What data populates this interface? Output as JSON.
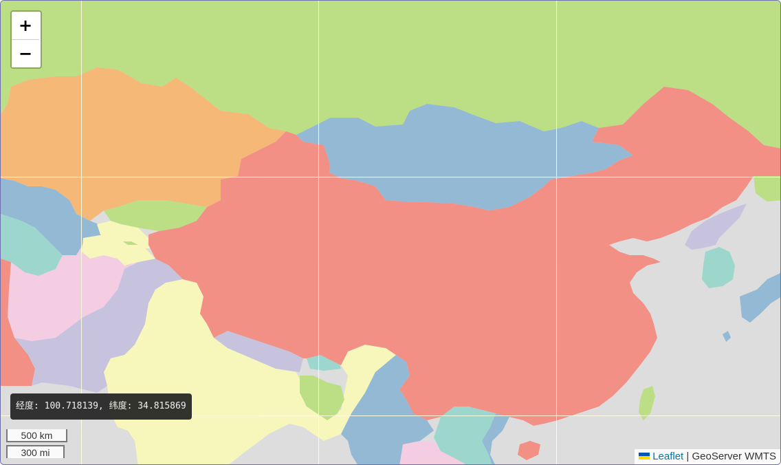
{
  "map": {
    "zoom_in_label": "+",
    "zoom_out_label": "−",
    "coordinate_readout": "经度: 100.718139, 纬度: 34.815869",
    "scale_metric": "500 km",
    "scale_imperial": "300 mi",
    "attribution_link": "Leaflet",
    "attribution_separator": " | ",
    "attribution_source": "GeoServer WMTS",
    "colors": {
      "sea": "#dddddd",
      "russia_green": "#bcdf85",
      "kazakhstan_orange": "#f5b877",
      "mongolia_blue": "#94b9d5",
      "china_red": "#f29085",
      "india_yellow": "#f8f7bb",
      "pakistan_lavender": "#c7c3df",
      "afghanistan_pink": "#f4cde3",
      "teal": "#9dd6cc",
      "grid_line": "#ffffe0"
    },
    "flag_icon": "ukraine-flag-icon"
  }
}
